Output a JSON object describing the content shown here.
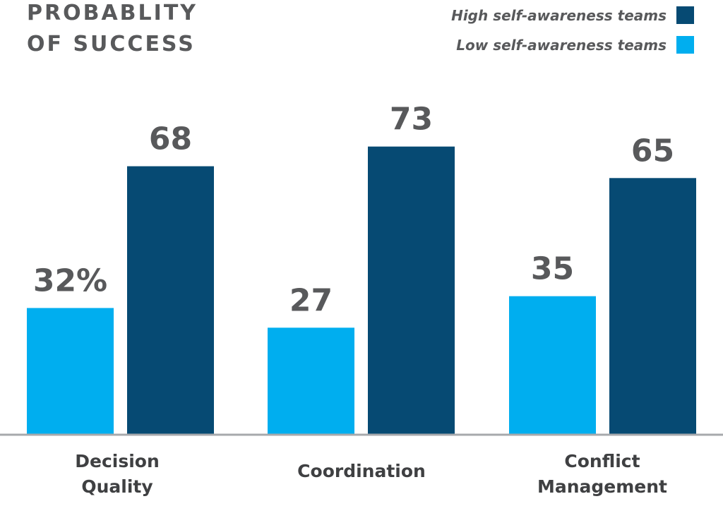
{
  "chart_data": {
    "type": "bar",
    "title_lines": [
      "PROBABLITY",
      "OF SUCCESS"
    ],
    "categories": [
      [
        "Decision",
        "Quality"
      ],
      [
        "Coordination"
      ],
      [
        "Conflict",
        "Management"
      ]
    ],
    "series": [
      {
        "name": "Low self-awareness teams",
        "color": "#00aeef",
        "values": [
          32,
          27,
          35
        ],
        "labels": [
          "32%",
          "27",
          "35"
        ]
      },
      {
        "name": "High self-awareness teams",
        "color": "#064a73",
        "values": [
          68,
          73,
          65
        ],
        "labels": [
          "68",
          "73",
          "65"
        ]
      }
    ],
    "legend_order": [
      1,
      0
    ],
    "legend_position": "top-right",
    "ylim": [
      0,
      100
    ],
    "grid": false,
    "baseline_color": "#a7a9ac"
  }
}
